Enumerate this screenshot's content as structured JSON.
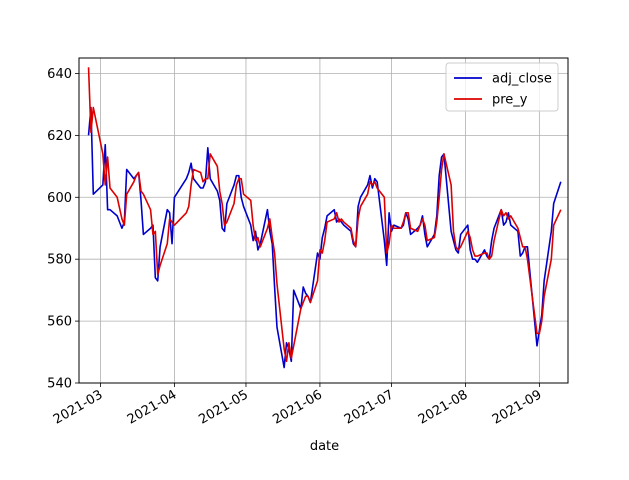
{
  "chart_data": {
    "type": "line",
    "title": "",
    "xlabel": "date",
    "ylabel": "",
    "xlim": [
      "2021-02-20",
      "2021-09-13"
    ],
    "ylim": [
      540,
      645
    ],
    "grid": true,
    "legend_position": "top-right",
    "x_ticks": [
      {
        "date": "2021-03-01",
        "label": "2021-03"
      },
      {
        "date": "2021-04-01",
        "label": "2021-04"
      },
      {
        "date": "2021-05-01",
        "label": "2021-05"
      },
      {
        "date": "2021-06-01",
        "label": "2021-06"
      },
      {
        "date": "2021-07-01",
        "label": "2021-07"
      },
      {
        "date": "2021-08-01",
        "label": "2021-08"
      },
      {
        "date": "2021-09-01",
        "label": "2021-09"
      }
    ],
    "y_ticks": [
      540,
      560,
      580,
      600,
      620,
      640
    ],
    "series": [
      {
        "name": "adj_close",
        "color": "#0000cc",
        "points": [
          [
            "2021-02-24",
            620
          ],
          [
            "2021-02-25",
            629
          ],
          [
            "2021-02-26",
            601
          ],
          [
            "2021-03-02",
            604
          ],
          [
            "2021-03-03",
            617
          ],
          [
            "2021-03-04",
            596
          ],
          [
            "2021-03-05",
            596
          ],
          [
            "2021-03-08",
            594
          ],
          [
            "2021-03-10",
            590
          ],
          [
            "2021-03-11",
            592
          ],
          [
            "2021-03-12",
            609
          ],
          [
            "2021-03-15",
            606
          ],
          [
            "2021-03-16",
            607
          ],
          [
            "2021-03-17",
            608
          ],
          [
            "2021-03-18",
            599
          ],
          [
            "2021-03-19",
            588
          ],
          [
            "2021-03-22",
            590
          ],
          [
            "2021-03-23",
            591
          ],
          [
            "2021-03-24",
            574
          ],
          [
            "2021-03-25",
            573
          ],
          [
            "2021-03-26",
            584
          ],
          [
            "2021-03-29",
            596
          ],
          [
            "2021-03-30",
            595
          ],
          [
            "2021-03-31",
            585
          ],
          [
            "2021-04-01",
            600
          ],
          [
            "2021-04-06",
            606
          ],
          [
            "2021-04-07",
            608
          ],
          [
            "2021-04-08",
            611
          ],
          [
            "2021-04-09",
            606
          ],
          [
            "2021-04-12",
            603
          ],
          [
            "2021-04-13",
            603
          ],
          [
            "2021-04-14",
            605
          ],
          [
            "2021-04-15",
            616
          ],
          [
            "2021-04-16",
            606
          ],
          [
            "2021-04-19",
            602
          ],
          [
            "2021-04-20",
            599
          ],
          [
            "2021-04-21",
            590
          ],
          [
            "2021-04-22",
            589
          ],
          [
            "2021-04-23",
            598
          ],
          [
            "2021-04-26",
            604
          ],
          [
            "2021-04-27",
            607
          ],
          [
            "2021-04-28",
            607
          ],
          [
            "2021-04-29",
            600
          ],
          [
            "2021-04-30",
            597
          ],
          [
            "2021-05-03",
            591
          ],
          [
            "2021-05-04",
            586
          ],
          [
            "2021-05-05",
            589
          ],
          [
            "2021-05-06",
            583
          ],
          [
            "2021-05-07",
            585
          ],
          [
            "2021-05-10",
            596
          ],
          [
            "2021-05-11",
            589
          ],
          [
            "2021-05-12",
            585
          ],
          [
            "2021-05-13",
            571
          ],
          [
            "2021-05-14",
            558
          ],
          [
            "2021-05-17",
            545
          ],
          [
            "2021-05-18",
            553
          ],
          [
            "2021-05-19",
            551
          ],
          [
            "2021-05-20",
            547
          ],
          [
            "2021-05-21",
            570
          ],
          [
            "2021-05-24",
            564
          ],
          [
            "2021-05-25",
            571
          ],
          [
            "2021-05-26",
            569
          ],
          [
            "2021-05-27",
            568
          ],
          [
            "2021-05-28",
            566
          ],
          [
            "2021-05-31",
            582
          ],
          [
            "2021-06-01",
            580
          ],
          [
            "2021-06-02",
            587
          ],
          [
            "2021-06-03",
            590
          ],
          [
            "2021-06-04",
            594
          ],
          [
            "2021-06-07",
            596
          ],
          [
            "2021-06-08",
            592
          ],
          [
            "2021-06-09",
            593
          ],
          [
            "2021-06-10",
            592
          ],
          [
            "2021-06-11",
            591
          ],
          [
            "2021-06-14",
            589
          ],
          [
            "2021-06-15",
            585
          ],
          [
            "2021-06-16",
            584
          ],
          [
            "2021-06-17",
            597
          ],
          [
            "2021-06-18",
            600
          ],
          [
            "2021-06-21",
            604
          ],
          [
            "2021-06-22",
            607
          ],
          [
            "2021-06-23",
            603
          ],
          [
            "2021-06-24",
            606
          ],
          [
            "2021-06-25",
            605
          ],
          [
            "2021-06-28",
            586
          ],
          [
            "2021-06-29",
            578
          ],
          [
            "2021-06-30",
            595
          ],
          [
            "2021-07-01",
            589
          ],
          [
            "2021-07-02",
            591
          ],
          [
            "2021-07-05",
            590
          ],
          [
            "2021-07-06",
            591
          ],
          [
            "2021-07-07",
            595
          ],
          [
            "2021-07-08",
            593
          ],
          [
            "2021-07-09",
            588
          ],
          [
            "2021-07-12",
            590
          ],
          [
            "2021-07-13",
            591
          ],
          [
            "2021-07-14",
            594
          ],
          [
            "2021-07-15",
            588
          ],
          [
            "2021-07-16",
            584
          ],
          [
            "2021-07-19",
            588
          ],
          [
            "2021-07-20",
            594
          ],
          [
            "2021-07-21",
            607
          ],
          [
            "2021-07-22",
            613
          ],
          [
            "2021-07-23",
            614
          ],
          [
            "2021-07-26",
            589
          ],
          [
            "2021-07-27",
            586
          ],
          [
            "2021-07-28",
            583
          ],
          [
            "2021-07-29",
            582
          ],
          [
            "2021-07-30",
            588
          ],
          [
            "2021-08-02",
            591
          ],
          [
            "2021-08-03",
            583
          ],
          [
            "2021-08-04",
            580
          ],
          [
            "2021-08-05",
            580
          ],
          [
            "2021-08-06",
            579
          ],
          [
            "2021-08-09",
            583
          ],
          [
            "2021-08-10",
            581
          ],
          [
            "2021-08-11",
            580
          ],
          [
            "2021-08-12",
            586
          ],
          [
            "2021-08-13",
            590
          ],
          [
            "2021-08-16",
            596
          ],
          [
            "2021-08-17",
            591
          ],
          [
            "2021-08-18",
            592
          ],
          [
            "2021-08-19",
            595
          ],
          [
            "2021-08-20",
            591
          ],
          [
            "2021-08-23",
            589
          ],
          [
            "2021-08-24",
            581
          ],
          [
            "2021-08-25",
            582
          ],
          [
            "2021-08-26",
            584
          ],
          [
            "2021-08-27",
            584
          ],
          [
            "2021-08-30",
            560
          ],
          [
            "2021-08-31",
            552
          ],
          [
            "2021-09-01",
            557
          ],
          [
            "2021-09-02",
            562
          ],
          [
            "2021-09-03",
            573
          ],
          [
            "2021-09-06",
            589
          ],
          [
            "2021-09-07",
            598
          ],
          [
            "2021-09-10",
            605
          ]
        ]
      },
      {
        "name": "pre_y",
        "color": "#dd0000",
        "points": [
          [
            "2021-02-24",
            642
          ],
          [
            "2021-02-25",
            621
          ],
          [
            "2021-02-26",
            629
          ],
          [
            "2021-03-02",
            614
          ],
          [
            "2021-03-03",
            604
          ],
          [
            "2021-03-04",
            613
          ],
          [
            "2021-03-05",
            603
          ],
          [
            "2021-03-08",
            600
          ],
          [
            "2021-03-10",
            593
          ],
          [
            "2021-03-11",
            591
          ],
          [
            "2021-03-12",
            601
          ],
          [
            "2021-03-15",
            605
          ],
          [
            "2021-03-16",
            607
          ],
          [
            "2021-03-17",
            608
          ],
          [
            "2021-03-18",
            602
          ],
          [
            "2021-03-19",
            601
          ],
          [
            "2021-03-22",
            596
          ],
          [
            "2021-03-23",
            588
          ],
          [
            "2021-03-24",
            589
          ],
          [
            "2021-03-25",
            575
          ],
          [
            "2021-03-26",
            578
          ],
          [
            "2021-03-29",
            585
          ],
          [
            "2021-03-30",
            593
          ],
          [
            "2021-03-31",
            592
          ],
          [
            "2021-04-01",
            591
          ],
          [
            "2021-04-06",
            595
          ],
          [
            "2021-04-07",
            597
          ],
          [
            "2021-04-08",
            604
          ],
          [
            "2021-04-09",
            609
          ],
          [
            "2021-04-12",
            608
          ],
          [
            "2021-04-13",
            605
          ],
          [
            "2021-04-14",
            606
          ],
          [
            "2021-04-15",
            606
          ],
          [
            "2021-04-16",
            614
          ],
          [
            "2021-04-19",
            610
          ],
          [
            "2021-04-20",
            602
          ],
          [
            "2021-04-21",
            598
          ],
          [
            "2021-04-22",
            591
          ],
          [
            "2021-04-23",
            592
          ],
          [
            "2021-04-26",
            598
          ],
          [
            "2021-04-27",
            604
          ],
          [
            "2021-04-28",
            606
          ],
          [
            "2021-04-29",
            606
          ],
          [
            "2021-04-30",
            601
          ],
          [
            "2021-05-03",
            599
          ],
          [
            "2021-05-04",
            591
          ],
          [
            "2021-05-05",
            586
          ],
          [
            "2021-05-06",
            587
          ],
          [
            "2021-05-07",
            584
          ],
          [
            "2021-05-10",
            590
          ],
          [
            "2021-05-11",
            593
          ],
          [
            "2021-05-12",
            587
          ],
          [
            "2021-05-13",
            582
          ],
          [
            "2021-05-14",
            572
          ],
          [
            "2021-05-17",
            551
          ],
          [
            "2021-05-18",
            547
          ],
          [
            "2021-05-19",
            553
          ],
          [
            "2021-05-20",
            548
          ],
          [
            "2021-05-21",
            552
          ],
          [
            "2021-05-24",
            564
          ],
          [
            "2021-05-25",
            566
          ],
          [
            "2021-05-26",
            568
          ],
          [
            "2021-05-27",
            568
          ],
          [
            "2021-05-28",
            566
          ],
          [
            "2021-05-31",
            573
          ],
          [
            "2021-06-01",
            583
          ],
          [
            "2021-06-02",
            582
          ],
          [
            "2021-06-03",
            586
          ],
          [
            "2021-06-04",
            592
          ],
          [
            "2021-06-07",
            593
          ],
          [
            "2021-06-08",
            595
          ],
          [
            "2021-06-09",
            592
          ],
          [
            "2021-06-10",
            593
          ],
          [
            "2021-06-11",
            592
          ],
          [
            "2021-06-14",
            590
          ],
          [
            "2021-06-15",
            586
          ],
          [
            "2021-06-16",
            584
          ],
          [
            "2021-06-17",
            593
          ],
          [
            "2021-06-18",
            597
          ],
          [
            "2021-06-21",
            601
          ],
          [
            "2021-06-22",
            605
          ],
          [
            "2021-06-23",
            604
          ],
          [
            "2021-06-24",
            605
          ],
          [
            "2021-06-25",
            603
          ],
          [
            "2021-06-28",
            600
          ],
          [
            "2021-06-29",
            582
          ],
          [
            "2021-06-30",
            585
          ],
          [
            "2021-07-01",
            591
          ],
          [
            "2021-07-02",
            590
          ],
          [
            "2021-07-05",
            590
          ],
          [
            "2021-07-06",
            592
          ],
          [
            "2021-07-07",
            595
          ],
          [
            "2021-07-08",
            595
          ],
          [
            "2021-07-09",
            590
          ],
          [
            "2021-07-12",
            589
          ],
          [
            "2021-07-13",
            591
          ],
          [
            "2021-07-14",
            593
          ],
          [
            "2021-07-15",
            591
          ],
          [
            "2021-07-16",
            586
          ],
          [
            "2021-07-19",
            587
          ],
          [
            "2021-07-20",
            592
          ],
          [
            "2021-07-21",
            600
          ],
          [
            "2021-07-22",
            609
          ],
          [
            "2021-07-23",
            614
          ],
          [
            "2021-07-26",
            604
          ],
          [
            "2021-07-27",
            589
          ],
          [
            "2021-07-28",
            584
          ],
          [
            "2021-07-29",
            583
          ],
          [
            "2021-07-30",
            584
          ],
          [
            "2021-08-02",
            589
          ],
          [
            "2021-08-03",
            587
          ],
          [
            "2021-08-04",
            583
          ],
          [
            "2021-08-05",
            581
          ],
          [
            "2021-08-06",
            581
          ],
          [
            "2021-08-09",
            582
          ],
          [
            "2021-08-10",
            582
          ],
          [
            "2021-08-11",
            580
          ],
          [
            "2021-08-12",
            581
          ],
          [
            "2021-08-13",
            586
          ],
          [
            "2021-08-16",
            596
          ],
          [
            "2021-08-17",
            594
          ],
          [
            "2021-08-18",
            595
          ],
          [
            "2021-08-19",
            593
          ],
          [
            "2021-08-20",
            594
          ],
          [
            "2021-08-23",
            590
          ],
          [
            "2021-08-24",
            587
          ],
          [
            "2021-08-25",
            584
          ],
          [
            "2021-08-26",
            584
          ],
          [
            "2021-08-27",
            580
          ],
          [
            "2021-08-30",
            562
          ],
          [
            "2021-08-31",
            556
          ],
          [
            "2021-09-01",
            556
          ],
          [
            "2021-09-02",
            560
          ],
          [
            "2021-09-03",
            568
          ],
          [
            "2021-09-06",
            580
          ],
          [
            "2021-09-07",
            591
          ],
          [
            "2021-09-10",
            596
          ]
        ]
      }
    ]
  }
}
